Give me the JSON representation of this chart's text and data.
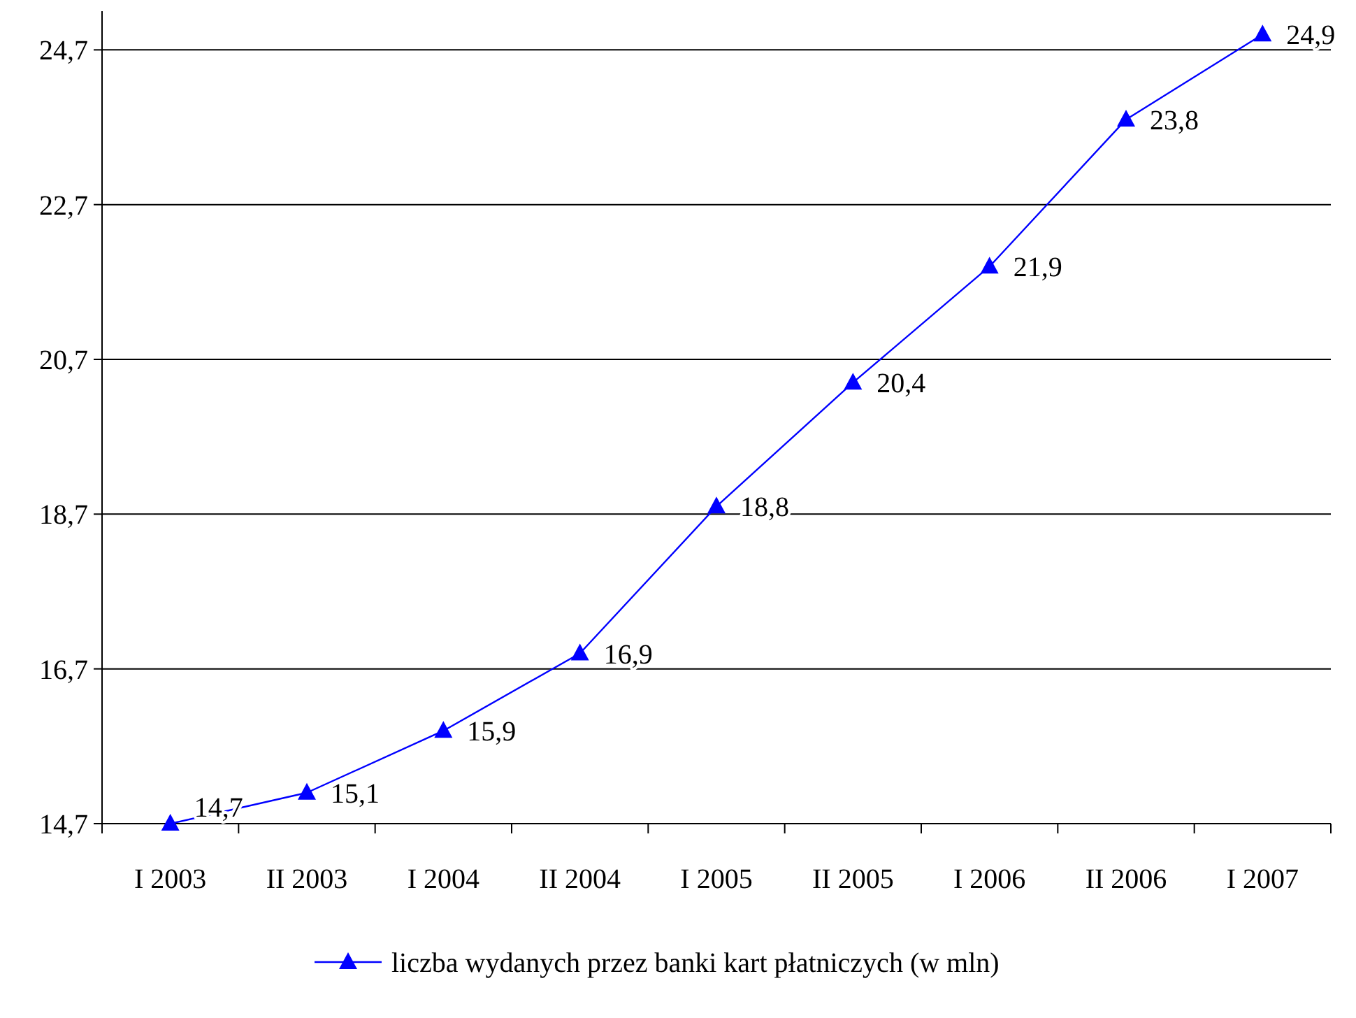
{
  "chart_data": {
    "type": "line",
    "categories": [
      "I 2003",
      "II 2003",
      "I 2004",
      "II 2004",
      "I 2005",
      "II 2005",
      "I 2006",
      "II 2006",
      "I 2007"
    ],
    "series": [
      {
        "name": "liczba wydanych przez banki kart płatniczych (w mln)",
        "color": "#0000ff",
        "values": [
          14.7,
          15.1,
          15.9,
          16.9,
          18.8,
          20.4,
          21.9,
          23.8,
          24.9
        ],
        "value_labels": [
          "14,7",
          "15,1",
          "15,9",
          "16,9",
          "18,8",
          "20,4",
          "21,9",
          "23,8",
          "24,9"
        ]
      }
    ],
    "ylim": [
      14.7,
      25.2
    ],
    "yticks": [
      {
        "value": 14.7,
        "label": "14,7"
      },
      {
        "value": 16.7,
        "label": "16,7"
      },
      {
        "value": 18.7,
        "label": "18,7"
      },
      {
        "value": 20.7,
        "label": "20,7"
      },
      {
        "value": 22.7,
        "label": "22,7"
      },
      {
        "value": 24.7,
        "label": "24,7"
      }
    ],
    "grid": "y",
    "legend": "bottom",
    "marker": "triangle",
    "line_style": "solid"
  }
}
